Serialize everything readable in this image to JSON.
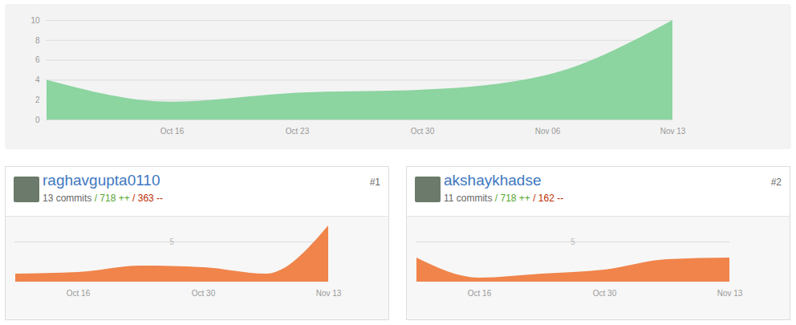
{
  "chart_data": [
    {
      "type": "area",
      "categories": [
        null,
        "Oct 16",
        "Oct 23",
        "Oct 30",
        "Nov 06",
        "Nov 13"
      ],
      "values": [
        4,
        1.8,
        2.7,
        3,
        4.5,
        10
      ],
      "color": "#8cd4a0",
      "ylim": [
        0,
        10
      ],
      "yticks": [
        0,
        2,
        4,
        6,
        8,
        10
      ],
      "grid": true
    },
    {
      "type": "area",
      "title": "raghavgupta0110",
      "subtitle": [
        "13 commits",
        "/ 718 ++",
        "/ 363 --"
      ],
      "annotations": [
        "#1"
      ],
      "categories": [
        null,
        "Oct 16",
        null,
        "Oct 30",
        null,
        "Nov 13"
      ],
      "values": [
        1,
        1.2,
        2,
        1.8,
        1,
        7
      ],
      "color": "#f0844a",
      "ylim": [
        0,
        7.5
      ],
      "yticks": [
        5
      ],
      "grid": true
    },
    {
      "type": "area",
      "title": "akshaykhadse",
      "subtitle": [
        "11 commits",
        "/ 718 ++",
        "/ 162 --"
      ],
      "annotations": [
        "#2"
      ],
      "categories": [
        null,
        "Oct 16",
        null,
        "Oct 30",
        null,
        "Nov 13"
      ],
      "values": [
        3,
        0.5,
        1,
        1.5,
        2.8,
        3
      ],
      "color": "#f0844a",
      "ylim": [
        0,
        7.5
      ],
      "yticks": [
        5
      ],
      "grid": true
    }
  ]
}
